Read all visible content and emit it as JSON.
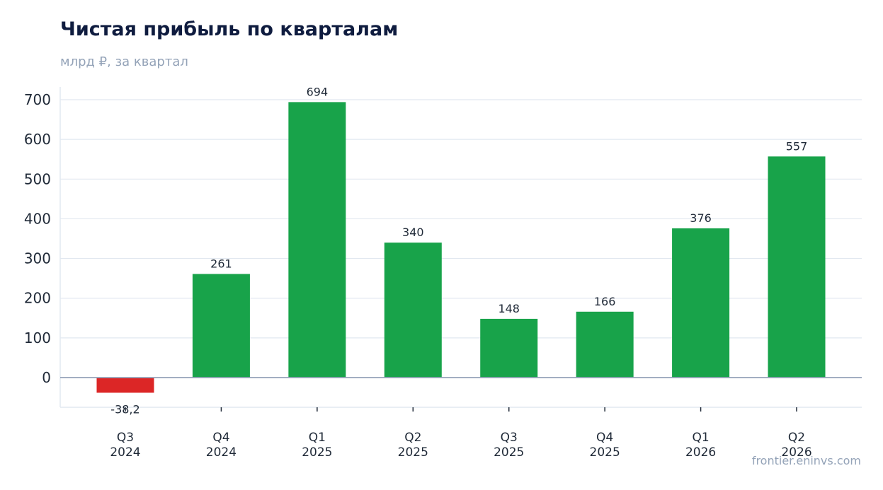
{
  "title": "Чистая прибыль по кварталам",
  "subtitle": "млрд ₽, за квартал",
  "source": "frontier.eninvs.com",
  "chart_data": {
    "type": "bar",
    "title": "Чистая прибыль по кварталам",
    "subtitle": "млрд ₽, за квартал",
    "categories": [
      [
        "Q3",
        "2024"
      ],
      [
        "Q4",
        "2024"
      ],
      [
        "Q1",
        "2025"
      ],
      [
        "Q2",
        "2025"
      ],
      [
        "Q3",
        "2025"
      ],
      [
        "Q4",
        "2025"
      ],
      [
        "Q1",
        "2026"
      ],
      [
        "Q2",
        "2026"
      ]
    ],
    "values": [
      -38.2,
      261,
      694,
      340,
      148,
      166,
      376,
      557
    ],
    "value_labels": [
      "-38,2",
      "261",
      "694",
      "340",
      "148",
      "166",
      "376",
      "557"
    ],
    "ylim": [
      -75,
      735
    ],
    "yticks": [
      0,
      100,
      200,
      300,
      400,
      500,
      600,
      700
    ],
    "grid": true,
    "colors": {
      "positive": "#18a34a",
      "negative": "#dc2626",
      "grid": "#e2e8f0",
      "zero_line": "#94a3b8"
    }
  }
}
